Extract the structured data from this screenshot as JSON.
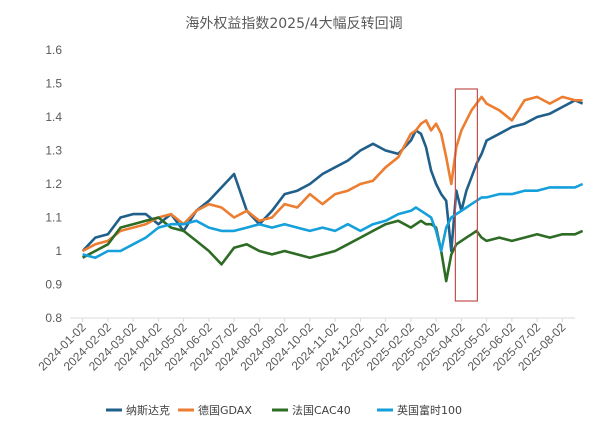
{
  "chart_data": {
    "type": "line",
    "title": "海外权益指数2025/4大幅反转回调",
    "xlabel": "",
    "ylabel": "",
    "ylim": [
      0.8,
      1.6
    ],
    "yticks": [
      "0.8",
      "0.9",
      "1",
      "1.1",
      "1.2",
      "1.3",
      "1.4",
      "1.5",
      "1.6"
    ],
    "x_categories": [
      "2024-01-02",
      "2024-02-02",
      "2024-03-02",
      "2024-04-02",
      "2024-05-02",
      "2024-06-02",
      "2024-07-02",
      "2024-08-02",
      "2024-09-02",
      "2024-10-02",
      "2024-11-02",
      "2024-12-02",
      "2025-01-02",
      "2025-02-02",
      "2025-03-02",
      "2025-04-02",
      "2025-05-02",
      "2025-06-02",
      "2025-07-02",
      "2025-08-02"
    ],
    "legend_position": "bottom",
    "grid": false,
    "highlight": {
      "from": "2025-04-02",
      "to": "2025-04-22",
      "color": "#c0504d"
    },
    "series": [
      {
        "name": "纳斯达克",
        "color": "#215f8b",
        "x": [
          0,
          0.5,
          1,
          1.5,
          2,
          2.5,
          3,
          3.5,
          4,
          4.5,
          5,
          5.5,
          6,
          6.5,
          7,
          7.5,
          8,
          8.5,
          9,
          9.5,
          10,
          10.5,
          11,
          11.5,
          12,
          12.5,
          13,
          13.2,
          13.4,
          13.6,
          13.8,
          14,
          14.2,
          14.4,
          14.6,
          14.8,
          15,
          15.2,
          15.4,
          15.6,
          15.8,
          16,
          16.5,
          17,
          17.5,
          18,
          18.5,
          19,
          19.5,
          19.8
        ],
        "y": [
          1.0,
          1.04,
          1.05,
          1.1,
          1.11,
          1.11,
          1.08,
          1.11,
          1.06,
          1.12,
          1.15,
          1.19,
          1.23,
          1.12,
          1.08,
          1.12,
          1.17,
          1.18,
          1.2,
          1.23,
          1.25,
          1.27,
          1.3,
          1.32,
          1.3,
          1.29,
          1.33,
          1.36,
          1.35,
          1.31,
          1.24,
          1.2,
          1.17,
          1.15,
          1.0,
          1.18,
          1.12,
          1.18,
          1.22,
          1.26,
          1.29,
          1.33,
          1.35,
          1.37,
          1.38,
          1.4,
          1.41,
          1.43,
          1.45,
          1.44
        ]
      },
      {
        "name": "德国GDAX",
        "color": "#ed7d31",
        "x": [
          0,
          0.5,
          1,
          1.5,
          2,
          2.5,
          3,
          3.5,
          4,
          4.5,
          5,
          5.5,
          6,
          6.5,
          7,
          7.5,
          8,
          8.5,
          9,
          9.5,
          10,
          10.5,
          11,
          11.5,
          12,
          12.5,
          13,
          13.2,
          13.4,
          13.6,
          13.8,
          14,
          14.2,
          14.4,
          14.6,
          14.8,
          15,
          15.2,
          15.4,
          15.6,
          15.8,
          16,
          16.5,
          17,
          17.5,
          18,
          18.5,
          19,
          19.5,
          19.8
        ],
        "y": [
          1.0,
          1.02,
          1.03,
          1.06,
          1.07,
          1.08,
          1.1,
          1.11,
          1.08,
          1.12,
          1.14,
          1.13,
          1.1,
          1.12,
          1.09,
          1.1,
          1.14,
          1.13,
          1.17,
          1.14,
          1.17,
          1.18,
          1.2,
          1.21,
          1.25,
          1.28,
          1.35,
          1.36,
          1.38,
          1.39,
          1.36,
          1.38,
          1.35,
          1.28,
          1.2,
          1.31,
          1.36,
          1.39,
          1.42,
          1.44,
          1.46,
          1.44,
          1.42,
          1.39,
          1.45,
          1.46,
          1.44,
          1.46,
          1.45,
          1.45
        ]
      },
      {
        "name": "法国CAC40",
        "color": "#2e6b25",
        "x": [
          0,
          0.5,
          1,
          1.5,
          2,
          2.5,
          3,
          3.5,
          4,
          4.5,
          5,
          5.5,
          6,
          6.5,
          7,
          7.5,
          8,
          8.5,
          9,
          9.5,
          10,
          10.5,
          11,
          11.5,
          12,
          12.5,
          13,
          13.2,
          13.4,
          13.6,
          13.8,
          14,
          14.2,
          14.4,
          14.6,
          14.8,
          15,
          15.2,
          15.4,
          15.6,
          15.8,
          16,
          16.5,
          17,
          17.5,
          18,
          18.5,
          19,
          19.5,
          19.8
        ],
        "y": [
          0.98,
          1.0,
          1.02,
          1.07,
          1.08,
          1.09,
          1.1,
          1.07,
          1.06,
          1.03,
          1.0,
          0.96,
          1.01,
          1.02,
          1.0,
          0.99,
          1.0,
          0.99,
          0.98,
          0.99,
          1.0,
          1.02,
          1.04,
          1.06,
          1.08,
          1.09,
          1.07,
          1.08,
          1.09,
          1.08,
          1.08,
          1.07,
          1.0,
          0.91,
          0.99,
          1.02,
          1.03,
          1.04,
          1.05,
          1.06,
          1.04,
          1.03,
          1.04,
          1.03,
          1.04,
          1.05,
          1.04,
          1.05,
          1.05,
          1.06
        ]
      },
      {
        "name": "英国富时100",
        "color": "#15a0dc",
        "x": [
          0,
          0.5,
          1,
          1.5,
          2,
          2.5,
          3,
          3.5,
          4,
          4.5,
          5,
          5.5,
          6,
          6.5,
          7,
          7.5,
          8,
          8.5,
          9,
          9.5,
          10,
          10.5,
          11,
          11.5,
          12,
          12.5,
          13,
          13.2,
          13.4,
          13.6,
          13.8,
          14,
          14.2,
          14.4,
          14.6,
          14.8,
          15,
          15.2,
          15.4,
          15.6,
          15.8,
          16,
          16.5,
          17,
          17.5,
          18,
          18.5,
          19,
          19.5,
          19.8
        ],
        "y": [
          0.99,
          0.98,
          1.0,
          1.0,
          1.02,
          1.04,
          1.07,
          1.08,
          1.08,
          1.09,
          1.07,
          1.06,
          1.06,
          1.07,
          1.08,
          1.07,
          1.08,
          1.07,
          1.06,
          1.07,
          1.06,
          1.08,
          1.06,
          1.08,
          1.09,
          1.11,
          1.12,
          1.13,
          1.12,
          1.11,
          1.1,
          1.06,
          1.0,
          1.07,
          1.1,
          1.11,
          1.12,
          1.13,
          1.14,
          1.15,
          1.16,
          1.16,
          1.17,
          1.17,
          1.18,
          1.18,
          1.19,
          1.19,
          1.19,
          1.2
        ]
      }
    ]
  }
}
